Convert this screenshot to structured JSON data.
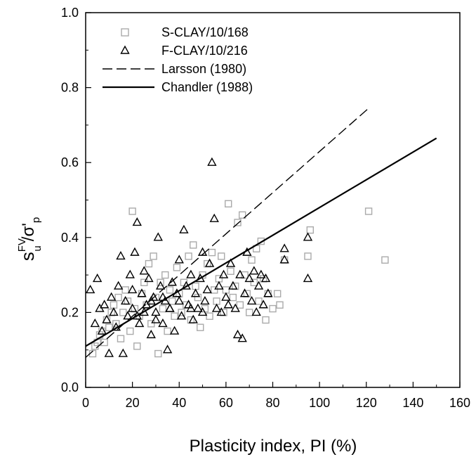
{
  "chart_data": {
    "type": "scatter",
    "xlabel": "Plasticity index, PI (%)",
    "ylabel": {
      "base": "s",
      "sup": "FV",
      "sub": "u",
      "rest": "/σ'",
      "rest_sub": "p"
    },
    "xlim": [
      0,
      160
    ],
    "ylim": [
      0,
      1.0
    ],
    "xticks": [
      "0",
      "20",
      "40",
      "60",
      "80",
      "100",
      "120",
      "140",
      "160"
    ],
    "yticks": [
      "0.0",
      "0.2",
      "0.4",
      "0.6",
      "0.8",
      "1.0"
    ],
    "grid": false,
    "legend_position": "top-left",
    "series": [
      {
        "name": "S-CLAY/10/168",
        "marker": "square",
        "color": "#aaaaaa",
        "points": [
          [
            3,
            0.09
          ],
          [
            4,
            0.11
          ],
          [
            5,
            0.12
          ],
          [
            6,
            0.14
          ],
          [
            7,
            0.15
          ],
          [
            8,
            0.12
          ],
          [
            9,
            0.18
          ],
          [
            10,
            0.16
          ],
          [
            11,
            0.2
          ],
          [
            12,
            0.22
          ],
          [
            13,
            0.17
          ],
          [
            14,
            0.24
          ],
          [
            15,
            0.13
          ],
          [
            16,
            0.2
          ],
          [
            17,
            0.26
          ],
          [
            18,
            0.23
          ],
          [
            19,
            0.15
          ],
          [
            20,
            0.47
          ],
          [
            21,
            0.21
          ],
          [
            22,
            0.11
          ],
          [
            23,
            0.19
          ],
          [
            24,
            0.25
          ],
          [
            25,
            0.28
          ],
          [
            26,
            0.22
          ],
          [
            27,
            0.33
          ],
          [
            28,
            0.17
          ],
          [
            29,
            0.35
          ],
          [
            30,
            0.24
          ],
          [
            31,
            0.09
          ],
          [
            32,
            0.28
          ],
          [
            33,
            0.21
          ],
          [
            34,
            0.3
          ],
          [
            35,
            0.15
          ],
          [
            36,
            0.26
          ],
          [
            37,
            0.23
          ],
          [
            38,
            0.19
          ],
          [
            39,
            0.32
          ],
          [
            40,
            0.25
          ],
          [
            41,
            0.2
          ],
          [
            42,
            0.28
          ],
          [
            43,
            0.22
          ],
          [
            44,
            0.35
          ],
          [
            45,
            0.18
          ],
          [
            46,
            0.38
          ],
          [
            47,
            0.27
          ],
          [
            48,
            0.24
          ],
          [
            49,
            0.16
          ],
          [
            50,
            0.3
          ],
          [
            51,
            0.21
          ],
          [
            52,
            0.33
          ],
          [
            53,
            0.19
          ],
          [
            54,
            0.36
          ],
          [
            55,
            0.26
          ],
          [
            56,
            0.23
          ],
          [
            57,
            0.29
          ],
          [
            58,
            0.35
          ],
          [
            59,
            0.2
          ],
          [
            60,
            0.26
          ],
          [
            61,
            0.49
          ],
          [
            62,
            0.31
          ],
          [
            63,
            0.24
          ],
          [
            64,
            0.27
          ],
          [
            65,
            0.44
          ],
          [
            66,
            0.22
          ],
          [
            67,
            0.46
          ],
          [
            68,
            0.3
          ],
          [
            69,
            0.25
          ],
          [
            70,
            0.2
          ],
          [
            71,
            0.34
          ],
          [
            72,
            0.28
          ],
          [
            73,
            0.37
          ],
          [
            74,
            0.23
          ],
          [
            75,
            0.39
          ],
          [
            76,
            0.29
          ],
          [
            77,
            0.18
          ],
          [
            78,
            0.25
          ],
          [
            80,
            0.21
          ],
          [
            82,
            0.25
          ],
          [
            83,
            0.22
          ],
          [
            85,
            0.34
          ],
          [
            95,
            0.35
          ],
          [
            96,
            0.42
          ],
          [
            121,
            0.47
          ],
          [
            128,
            0.34
          ]
        ]
      },
      {
        "name": "F-CLAY/10/216",
        "marker": "triangle",
        "color": "#000000",
        "points": [
          [
            2,
            0.26
          ],
          [
            4,
            0.17
          ],
          [
            5,
            0.29
          ],
          [
            6,
            0.21
          ],
          [
            7,
            0.15
          ],
          [
            8,
            0.22
          ],
          [
            9,
            0.18
          ],
          [
            10,
            0.09
          ],
          [
            11,
            0.24
          ],
          [
            12,
            0.2
          ],
          [
            13,
            0.16
          ],
          [
            14,
            0.27
          ],
          [
            15,
            0.35
          ],
          [
            16,
            0.09
          ],
          [
            17,
            0.23
          ],
          [
            18,
            0.19
          ],
          [
            19,
            0.3
          ],
          [
            20,
            0.21
          ],
          [
            21,
            0.36
          ],
          [
            22,
            0.44
          ],
          [
            23,
            0.17
          ],
          [
            24,
            0.25
          ],
          [
            25,
            0.31
          ],
          [
            26,
            0.22
          ],
          [
            27,
            0.29
          ],
          [
            28,
            0.14
          ],
          [
            29,
            0.24
          ],
          [
            30,
            0.2
          ],
          [
            31,
            0.4
          ],
          [
            32,
            0.27
          ],
          [
            33,
            0.17
          ],
          [
            34,
            0.23
          ],
          [
            35,
            0.1
          ],
          [
            36,
            0.21
          ],
          [
            37,
            0.28
          ],
          [
            38,
            0.15
          ],
          [
            39,
            0.25
          ],
          [
            40,
            0.34
          ],
          [
            41,
            0.19
          ],
          [
            42,
            0.42
          ],
          [
            43,
            0.27
          ],
          [
            44,
            0.22
          ],
          [
            45,
            0.3
          ],
          [
            46,
            0.18
          ],
          [
            47,
            0.25
          ],
          [
            48,
            0.21
          ],
          [
            49,
            0.29
          ],
          [
            50,
            0.36
          ],
          [
            51,
            0.23
          ],
          [
            52,
            0.26
          ],
          [
            53,
            0.33
          ],
          [
            54,
            0.6
          ],
          [
            55,
            0.45
          ],
          [
            56,
            0.21
          ],
          [
            57,
            0.27
          ],
          [
            58,
            0.2
          ],
          [
            59,
            0.3
          ],
          [
            60,
            0.24
          ],
          [
            61,
            0.22
          ],
          [
            62,
            0.33
          ],
          [
            63,
            0.27
          ],
          [
            64,
            0.21
          ],
          [
            65,
            0.14
          ],
          [
            66,
            0.3
          ],
          [
            67,
            0.13
          ],
          [
            68,
            0.25
          ],
          [
            69,
            0.36
          ],
          [
            70,
            0.29
          ],
          [
            71,
            0.23
          ],
          [
            72,
            0.31
          ],
          [
            73,
            0.2
          ],
          [
            74,
            0.27
          ],
          [
            75,
            0.3
          ],
          [
            76,
            0.22
          ],
          [
            77,
            0.29
          ],
          [
            78,
            0.25
          ],
          [
            85,
            0.37
          ],
          [
            85,
            0.34
          ],
          [
            95,
            0.29
          ],
          [
            95,
            0.4
          ],
          [
            20,
            0.26
          ],
          [
            22,
            0.19
          ],
          [
            25,
            0.2
          ],
          [
            28,
            0.23
          ],
          [
            30,
            0.18
          ],
          [
            33,
            0.24
          ],
          [
            36,
            0.21
          ],
          [
            40,
            0.23
          ],
          [
            45,
            0.21
          ],
          [
            50,
            0.2
          ]
        ]
      },
      {
        "name": "Larsson (1980)",
        "type": "line",
        "dash": "dashed",
        "color": "#000000",
        "x": [
          0,
          121
        ],
        "y": [
          0.08,
          0.745
        ]
      },
      {
        "name": "Chandler (1988)",
        "type": "line",
        "dash": "solid",
        "color": "#000000",
        "x": [
          0,
          150
        ],
        "y": [
          0.11,
          0.665
        ]
      }
    ]
  }
}
